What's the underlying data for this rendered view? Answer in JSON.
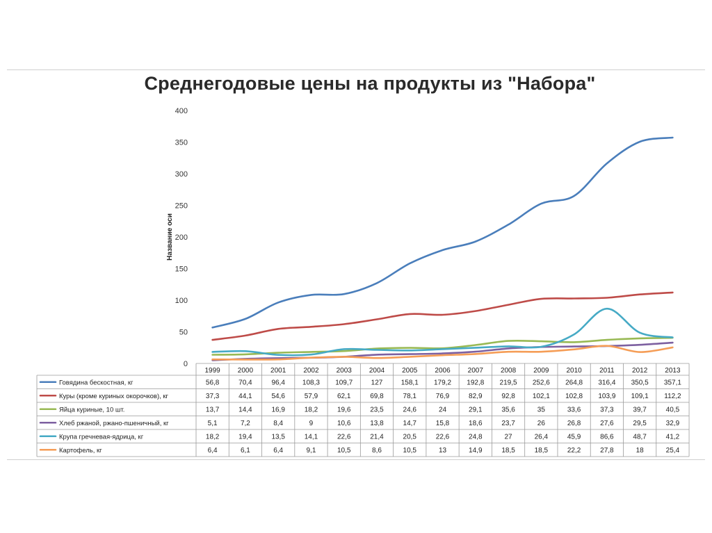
{
  "chart_data": {
    "type": "line",
    "title": "Среднегодовые цены на продукты из \"Набора\"",
    "ylabel": "Название оси",
    "xlabel": "",
    "ylim": [
      0,
      400
    ],
    "yticks": [
      0,
      50,
      100,
      150,
      200,
      250,
      300,
      350,
      400
    ],
    "grid": false,
    "legend": "data-table-bottom",
    "categories": [
      "1999",
      "2000",
      "2001",
      "2002",
      "2003",
      "2004",
      "2005",
      "2006",
      "2007",
      "2008",
      "2009",
      "2010",
      "2011",
      "2012",
      "2013"
    ],
    "series": [
      {
        "name": "Говядина бескостная, кг",
        "color": "#4a7ebb",
        "values": [
          "56,8",
          "70,4",
          "96,4",
          "108,3",
          "109,7",
          "127",
          "158,1",
          "179,2",
          "192,8",
          "219,5",
          "252,6",
          "264,8",
          "316,4",
          "350,5",
          "357,1"
        ]
      },
      {
        "name": "Куры (кроме куриных окорочков), кг",
        "color": "#be4b48",
        "values": [
          "37,3",
          "44,1",
          "54,6",
          "57,9",
          "62,1",
          "69,8",
          "78,1",
          "76,9",
          "82,9",
          "92,8",
          "102,1",
          "102,8",
          "103,9",
          "109,1",
          "112,2"
        ]
      },
      {
        "name": "Яйца куриные, 10 шт.",
        "color": "#98b954",
        "values": [
          "13,7",
          "14,4",
          "16,9",
          "18,2",
          "19,6",
          "23,5",
          "24,6",
          "24",
          "29,1",
          "35,6",
          "35",
          "33,6",
          "37,3",
          "39,7",
          "40,5"
        ]
      },
      {
        "name": "Хлеб ржаной, ржано-пшеничный, кг",
        "color": "#7d60a0",
        "values": [
          "5,1",
          "7,2",
          "8,4",
          "9",
          "10,6",
          "13,8",
          "14,7",
          "15,8",
          "18,6",
          "23,7",
          "26",
          "26,8",
          "27,6",
          "29,5",
          "32,9"
        ]
      },
      {
        "name": "Крупа гречневая-ядрица, кг",
        "color": "#46aac5",
        "values": [
          "18,2",
          "19,4",
          "13,5",
          "14,1",
          "22,6",
          "21,4",
          "20,5",
          "22,6",
          "24,8",
          "27",
          "26,4",
          "45,9",
          "86,6",
          "48,7",
          "41,2"
        ]
      },
      {
        "name": "Картофель, кг",
        "color": "#f59d56",
        "values": [
          "6,4",
          "6,1",
          "6,4",
          "9,1",
          "10,5",
          "8,6",
          "10,5",
          "13",
          "14,9",
          "18,5",
          "18,5",
          "22,2",
          "27,8",
          "18",
          "25,4"
        ]
      }
    ]
  }
}
